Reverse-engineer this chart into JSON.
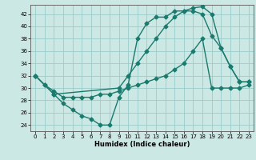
{
  "xlabel": "Humidex (Indice chaleur)",
  "bg_color": "#cce8e4",
  "grid_color": "#99cccc",
  "line_color": "#1a7a6e",
  "xlim": [
    -0.5,
    23.5
  ],
  "ylim": [
    23,
    43.5
  ],
  "yticks": [
    24,
    26,
    28,
    30,
    32,
    34,
    36,
    38,
    40,
    42
  ],
  "xticks": [
    0,
    1,
    2,
    3,
    4,
    5,
    6,
    7,
    8,
    9,
    10,
    11,
    12,
    13,
    14,
    15,
    16,
    17,
    18,
    19,
    20,
    21,
    22,
    23
  ],
  "series1_x": [
    0,
    1,
    2,
    3,
    4,
    5,
    6,
    7,
    8,
    9,
    10,
    11,
    12,
    13,
    14,
    15,
    16,
    17,
    18,
    19,
    20,
    21,
    22,
    23
  ],
  "series1_y": [
    32,
    30.5,
    29,
    27.5,
    26.5,
    25.5,
    25,
    24,
    24,
    28.5,
    30.5,
    38,
    40.5,
    41.5,
    41.5,
    42.5,
    42.5,
    42.5,
    42,
    38.5,
    36.5,
    33.5,
    31,
    31
  ],
  "series2_x": [
    0,
    1,
    2,
    3,
    4,
    5,
    6,
    7,
    8,
    9,
    10,
    11,
    12,
    13,
    14,
    15,
    16,
    17,
    18,
    19,
    20,
    21,
    22,
    23
  ],
  "series2_y": [
    32,
    30.5,
    29.5,
    28.5,
    28.5,
    28.5,
    28.5,
    29,
    29,
    29.5,
    30,
    30.5,
    31,
    31.5,
    32,
    33,
    34,
    36,
    38,
    30,
    30,
    30,
    30,
    30.5
  ],
  "series3_x": [
    0,
    2,
    9,
    10,
    11,
    12,
    13,
    14,
    15,
    16,
    17,
    18,
    19,
    20,
    21,
    22,
    23
  ],
  "series3_y": [
    32,
    29,
    30,
    32,
    34,
    36,
    38,
    40,
    41.5,
    42.5,
    43,
    43.2,
    42,
    36.5,
    33.5,
    31,
    31
  ],
  "marker": "D",
  "markersize": 2.5,
  "linewidth": 1.0
}
